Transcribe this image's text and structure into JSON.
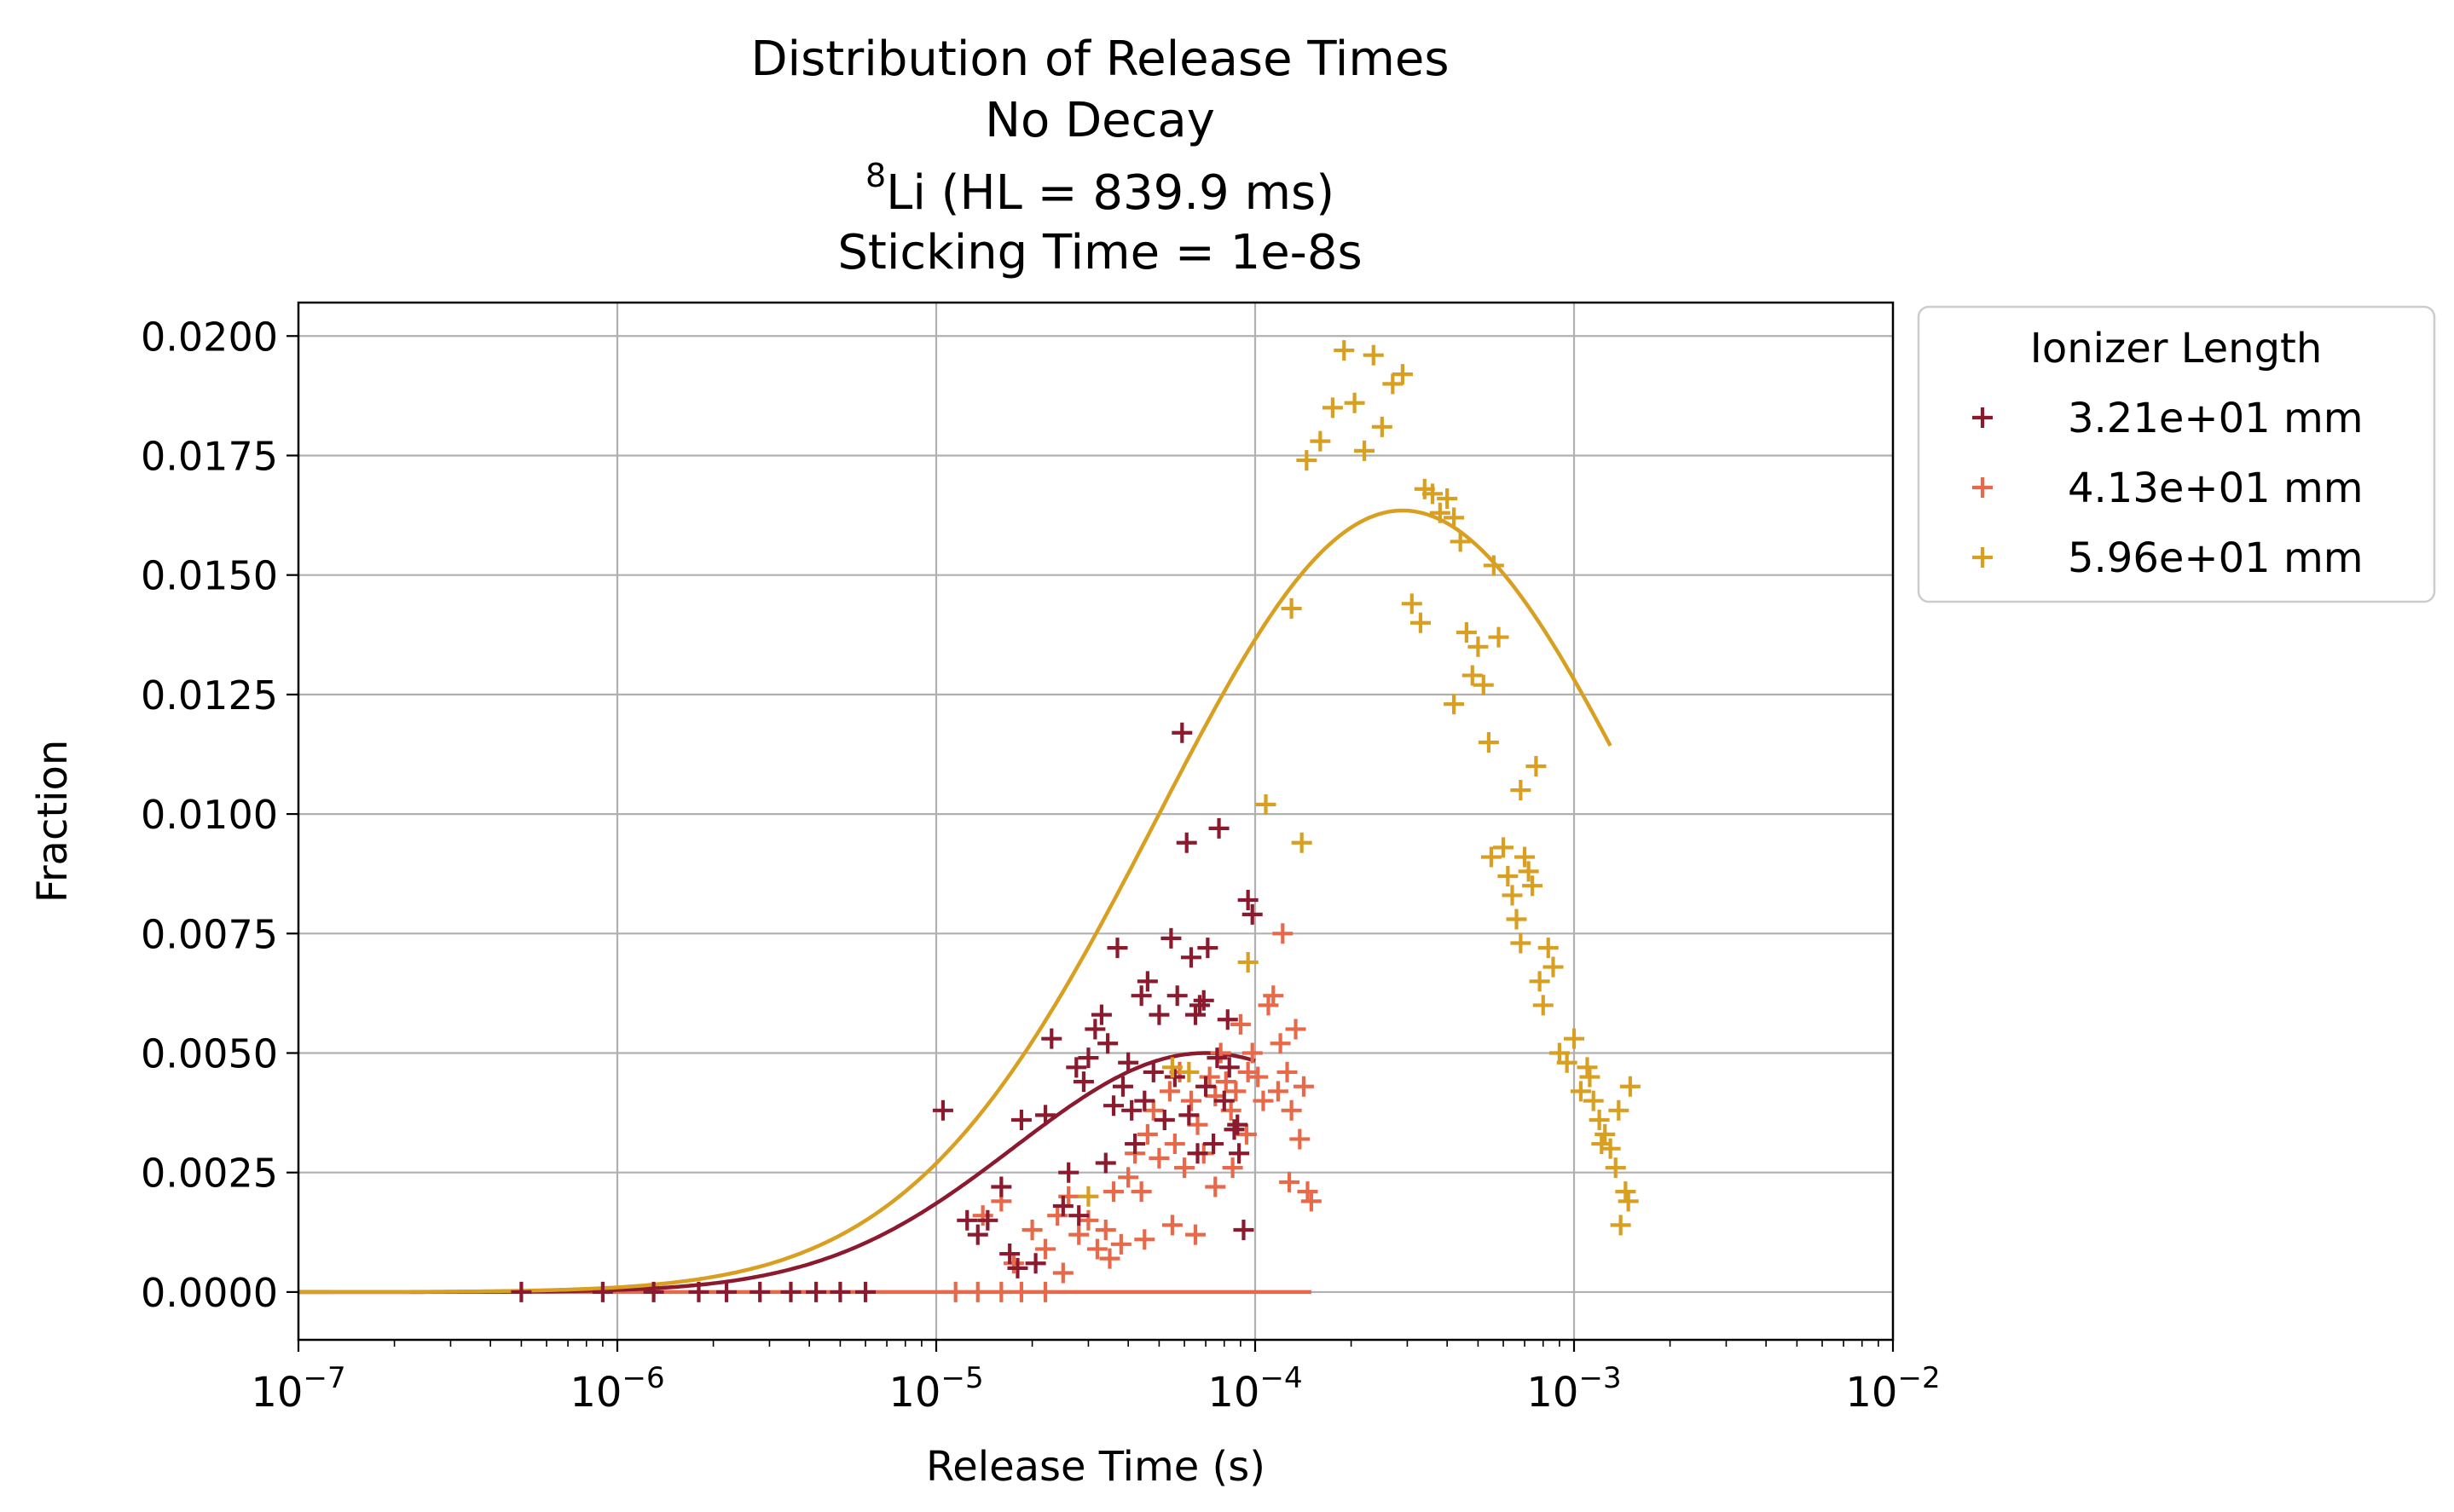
{
  "chart_data": {
    "type": "scatter",
    "title": {
      "line1": "Distribution of Release Times",
      "line2": "No Decay",
      "line3_sup": "8",
      "line3_rest": "Li (HL = 839.9 ms)",
      "line4": "Sticking Time = 1e-8s"
    },
    "xlabel": "Release Time (s)",
    "ylabel": "Fraction",
    "x_scale": "log",
    "xlim": [
      1e-07,
      0.01
    ],
    "ylim": [
      -0.001,
      0.0207
    ],
    "x_ticks": [
      {
        "value": 1e-07,
        "base": "10",
        "exp": "−7"
      },
      {
        "value": 1e-06,
        "base": "10",
        "exp": "−6"
      },
      {
        "value": 1e-05,
        "base": "10",
        "exp": "−5"
      },
      {
        "value": 0.0001,
        "base": "10",
        "exp": "−4"
      },
      {
        "value": 0.001,
        "base": "10",
        "exp": "−3"
      },
      {
        "value": 0.01,
        "base": "10",
        "exp": "−2"
      }
    ],
    "y_ticks": [
      {
        "value": 0.0,
        "label": "0.0000"
      },
      {
        "value": 0.0025,
        "label": "0.0025"
      },
      {
        "value": 0.005,
        "label": "0.0050"
      },
      {
        "value": 0.0075,
        "label": "0.0075"
      },
      {
        "value": 0.01,
        "label": "0.0100"
      },
      {
        "value": 0.0125,
        "label": "0.0125"
      },
      {
        "value": 0.015,
        "label": "0.0150"
      },
      {
        "value": 0.0175,
        "label": "0.0175"
      },
      {
        "value": 0.02,
        "label": "0.0200"
      }
    ],
    "grid": true,
    "legend": {
      "title": "Ionizer Length",
      "placement": "outside upper right"
    },
    "series": [
      {
        "name": "3.21e+01 mm",
        "color": "#8b1a2f",
        "marker": "plus",
        "curve": {
          "amplitude": 0.005,
          "peak_x": 7e-05,
          "log_sigma": 0.6,
          "x_range": [
            1e-07,
            0.0001
          ]
        },
        "points": [
          [
            5e-07,
            0
          ],
          [
            9e-07,
            0
          ],
          [
            1.3e-06,
            0
          ],
          [
            1.8e-06,
            0
          ],
          [
            2.2e-06,
            0
          ],
          [
            2.8e-06,
            0
          ],
          [
            3.5e-06,
            0
          ],
          [
            4.2e-06,
            0
          ],
          [
            5e-06,
            0
          ],
          [
            6e-06,
            0
          ],
          [
            1.05e-05,
            0.0038
          ],
          [
            1.25e-05,
            0.0015
          ],
          [
            1.35e-05,
            0.0012
          ],
          [
            1.45e-05,
            0.0015
          ],
          [
            1.6e-05,
            0.0022
          ],
          [
            1.7e-05,
            0.0008
          ],
          [
            1.8e-05,
            0.0005
          ],
          [
            1.85e-05,
            0.0036
          ],
          [
            2.05e-05,
            0.0006
          ],
          [
            2.2e-05,
            0.0037
          ],
          [
            2.3e-05,
            0.0053
          ],
          [
            2.5e-05,
            0.0018
          ],
          [
            2.6e-05,
            0.0025
          ],
          [
            2.75e-05,
            0.0047
          ],
          [
            2.9e-05,
            0.0044
          ],
          [
            3e-05,
            0.0049
          ],
          [
            3.15e-05,
            0.0055
          ],
          [
            3.3e-05,
            0.0058
          ],
          [
            3.45e-05,
            0.0052
          ],
          [
            3.6e-05,
            0.0039
          ],
          [
            3.7e-05,
            0.0072
          ],
          [
            3.85e-05,
            0.0043
          ],
          [
            4e-05,
            0.0048
          ],
          [
            4.2e-05,
            0.0031
          ],
          [
            4.4e-05,
            0.0062
          ],
          [
            4.6e-05,
            0.0065
          ],
          [
            4.8e-05,
            0.0046
          ],
          [
            5e-05,
            0.0058
          ],
          [
            5.2e-05,
            0.0036
          ],
          [
            5.45e-05,
            0.0074
          ],
          [
            5.7e-05,
            0.0062
          ],
          [
            5.9e-05,
            0.0117
          ],
          [
            6.1e-05,
            0.0094
          ],
          [
            6.3e-05,
            0.007
          ],
          [
            6.5e-05,
            0.0058
          ],
          [
            6.7e-05,
            0.006
          ],
          [
            6.9e-05,
            0.0061
          ],
          [
            7.1e-05,
            0.0072
          ],
          [
            7.4e-05,
            0.0031
          ],
          [
            7.7e-05,
            0.0097
          ],
          [
            8e-05,
            0.004
          ],
          [
            8.3e-05,
            0.0047
          ],
          [
            8.6e-05,
            0.0034
          ],
          [
            8.9e-05,
            0.0029
          ],
          [
            9.2e-05,
            0.0013
          ],
          [
            9.5e-05,
            0.0082
          ],
          [
            9.8e-05,
            0.0079
          ],
          [
            6.2e-05,
            0.0037
          ],
          [
            6.6e-05,
            0.0029
          ],
          [
            7e-05,
            0.0043
          ],
          [
            7.6e-05,
            0.0049
          ],
          [
            8.2e-05,
            0.0057
          ],
          [
            8.8e-05,
            0.0035
          ],
          [
            4.5e-05,
            0.004
          ],
          [
            3.4e-05,
            0.0027
          ],
          [
            2.8e-05,
            0.0016
          ],
          [
            5.6e-05,
            0.0045
          ],
          [
            4.1e-05,
            0.0038
          ]
        ]
      },
      {
        "name": "4.13e+01 mm",
        "color": "#e8694a",
        "marker": "plus",
        "curve": {
          "amplitude": 0.0,
          "peak_x": 0.0001,
          "log_sigma": 0.5,
          "x_range": [
            1e-07,
            0.00015
          ]
        },
        "points": [
          [
            1.15e-05,
            0
          ],
          [
            1.35e-05,
            0
          ],
          [
            1.6e-05,
            0
          ],
          [
            1.85e-05,
            0
          ],
          [
            2.2e-05,
            0
          ],
          [
            1.4e-05,
            0.0016
          ],
          [
            1.6e-05,
            0.0019
          ],
          [
            1.75e-05,
            0.0006
          ],
          [
            2e-05,
            0.0013
          ],
          [
            2.2e-05,
            0.0009
          ],
          [
            2.4e-05,
            0.0016
          ],
          [
            2.6e-05,
            0.002
          ],
          [
            2.8e-05,
            0.0012
          ],
          [
            3e-05,
            0.0015
          ],
          [
            3.2e-05,
            0.0009
          ],
          [
            3.4e-05,
            0.0013
          ],
          [
            3.6e-05,
            0.0021
          ],
          [
            3.8e-05,
            0.001
          ],
          [
            4e-05,
            0.0024
          ],
          [
            4.2e-05,
            0.0029
          ],
          [
            4.4e-05,
            0.0021
          ],
          [
            4.6e-05,
            0.0033
          ],
          [
            4.8e-05,
            0.0038
          ],
          [
            5e-05,
            0.0028
          ],
          [
            5.2e-05,
            0.0036
          ],
          [
            5.4e-05,
            0.0042
          ],
          [
            5.6e-05,
            0.0031
          ],
          [
            5.8e-05,
            0.0046
          ],
          [
            6e-05,
            0.0026
          ],
          [
            6.3e-05,
            0.004
          ],
          [
            6.6e-05,
            0.0035
          ],
          [
            6.9e-05,
            0.0029
          ],
          [
            7.2e-05,
            0.0045
          ],
          [
            7.5e-05,
            0.0041
          ],
          [
            7.8e-05,
            0.005
          ],
          [
            8.1e-05,
            0.0044
          ],
          [
            8.4e-05,
            0.0038
          ],
          [
            8.7e-05,
            0.0042
          ],
          [
            9e-05,
            0.0056
          ],
          [
            9.4e-05,
            0.0033
          ],
          [
            9.8e-05,
            0.005
          ],
          [
            0.000102,
            0.0045
          ],
          [
            0.000106,
            0.004
          ],
          [
            0.00011,
            0.006
          ],
          [
            0.000114,
            0.0062
          ],
          [
            0.000118,
            0.0042
          ],
          [
            0.000122,
            0.0075
          ],
          [
            0.000126,
            0.0046
          ],
          [
            0.00013,
            0.0038
          ],
          [
            0.000134,
            0.0055
          ],
          [
            0.000138,
            0.0032
          ],
          [
            0.000142,
            0.0043
          ],
          [
            0.000146,
            0.0021
          ],
          [
            0.00015,
            0.0019
          ],
          [
            5.5e-05,
            0.0014
          ],
          [
            6.5e-05,
            0.0012
          ],
          [
            7.5e-05,
            0.0022
          ],
          [
            8.5e-05,
            0.0026
          ],
          [
            4.5e-05,
            0.0011
          ],
          [
            3.5e-05,
            0.0007
          ],
          [
            2.5e-05,
            0.0004
          ],
          [
            9.5e-05,
            0.0046
          ],
          [
            0.000128,
            0.0023
          ],
          [
            0.00012,
            0.0052
          ]
        ]
      },
      {
        "name": "5.96e+01 mm",
        "color": "#d89f21",
        "marker": "plus",
        "curve": {
          "amplitude": 0.01635,
          "peak_x": 0.00029,
          "log_sigma": 0.77,
          "x_range": [
            1e-07,
            0.0013
          ]
        },
        "points": [
          [
            3e-05,
            0.002
          ],
          [
            5.5e-05,
            0.0047
          ],
          [
            6.2e-05,
            0.0046
          ],
          [
            9.5e-05,
            0.0069
          ],
          [
            0.000108,
            0.0102
          ],
          [
            0.00013,
            0.0143
          ],
          [
            0.00014,
            0.0094
          ],
          [
            0.000145,
            0.0174
          ],
          [
            0.00016,
            0.0178
          ],
          [
            0.000175,
            0.0185
          ],
          [
            0.00019,
            0.0197
          ],
          [
            0.000205,
            0.0186
          ],
          [
            0.00022,
            0.0176
          ],
          [
            0.000235,
            0.0196
          ],
          [
            0.00025,
            0.0181
          ],
          [
            0.00027,
            0.019
          ],
          [
            0.00029,
            0.0192
          ],
          [
            0.00031,
            0.0144
          ],
          [
            0.00033,
            0.014
          ],
          [
            0.00034,
            0.0168
          ],
          [
            0.00036,
            0.0167
          ],
          [
            0.00038,
            0.0163
          ],
          [
            0.0004,
            0.0166
          ],
          [
            0.00042,
            0.0162
          ],
          [
            0.00044,
            0.0157
          ],
          [
            0.00046,
            0.0138
          ],
          [
            0.00048,
            0.0129
          ],
          [
            0.0005,
            0.0135
          ],
          [
            0.00052,
            0.0127
          ],
          [
            0.00054,
            0.0115
          ],
          [
            0.00056,
            0.0152
          ],
          [
            0.00058,
            0.0137
          ],
          [
            0.0006,
            0.0093
          ],
          [
            0.00062,
            0.0087
          ],
          [
            0.00064,
            0.0083
          ],
          [
            0.00066,
            0.0078
          ],
          [
            0.00068,
            0.0073
          ],
          [
            0.0007,
            0.0091
          ],
          [
            0.00072,
            0.0088
          ],
          [
            0.00074,
            0.0085
          ],
          [
            0.00076,
            0.011
          ],
          [
            0.00078,
            0.0065
          ],
          [
            0.0008,
            0.006
          ],
          [
            0.00083,
            0.0072
          ],
          [
            0.00086,
            0.0068
          ],
          [
            0.0009,
            0.005
          ],
          [
            0.00095,
            0.0048
          ],
          [
            0.001,
            0.0053
          ],
          [
            0.00105,
            0.0042
          ],
          [
            0.0011,
            0.0047
          ],
          [
            0.00115,
            0.004
          ],
          [
            0.0012,
            0.0036
          ],
          [
            0.00125,
            0.0033
          ],
          [
            0.0013,
            0.003
          ],
          [
            0.00135,
            0.0026
          ],
          [
            0.0014,
            0.0014
          ],
          [
            0.00145,
            0.0021
          ],
          [
            0.0015,
            0.0043
          ],
          [
            0.00148,
            0.0019
          ],
          [
            0.00138,
            0.0038
          ],
          [
            0.00122,
            0.0031
          ],
          [
            0.00112,
            0.0045
          ],
          [
            0.00068,
            0.0105
          ],
          [
            0.00055,
            0.0091
          ],
          [
            0.00042,
            0.0123
          ]
        ]
      }
    ]
  }
}
